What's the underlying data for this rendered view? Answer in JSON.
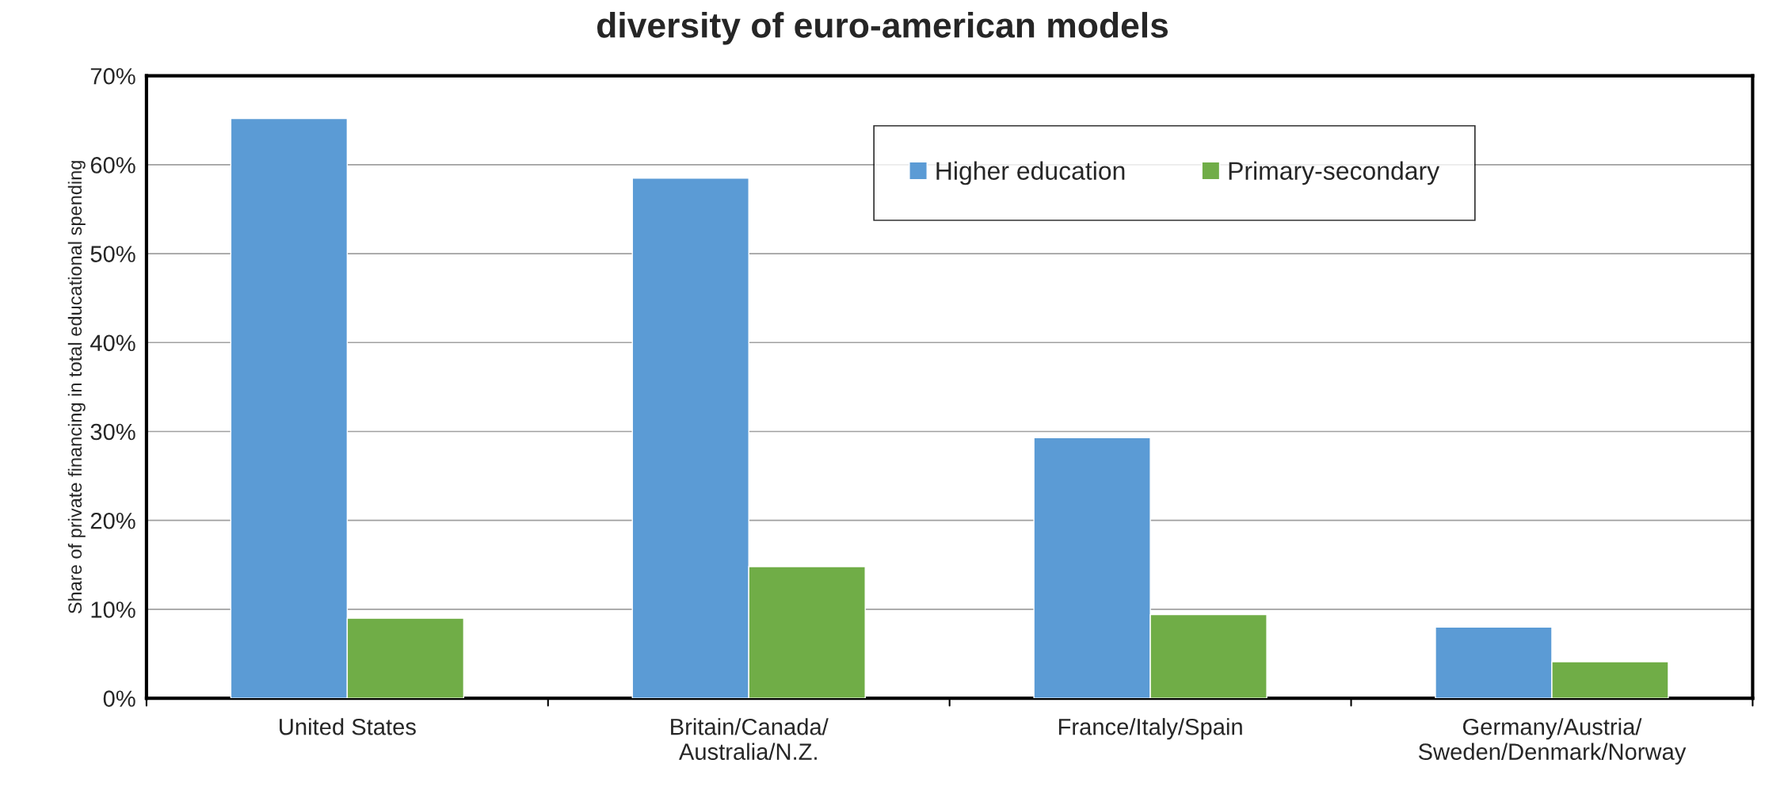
{
  "chart_data": {
    "type": "bar",
    "title": "diversity of euro-american models",
    "ylabel": "Share of private financing in total educational spending",
    "categories": [
      "United States",
      "Britain/Canada/\nAustralia/N.Z.",
      "France/Italy/Spain",
      "Germany/Austria/\nSweden/Denmark/Norway"
    ],
    "series": [
      {
        "name": "Higher education",
        "color": "#5b9bd5",
        "values": [
          65.2,
          58.5,
          29.3,
          8.0
        ]
      },
      {
        "name": "Primary-secondary",
        "color": "#70ad47",
        "values": [
          9.0,
          14.8,
          9.4,
          4.1
        ]
      }
    ],
    "ylim": [
      0,
      70
    ],
    "yticks": [
      {
        "value": 0,
        "label": "0%"
      },
      {
        "value": 10,
        "label": "10%"
      },
      {
        "value": 20,
        "label": "20%"
      },
      {
        "value": 30,
        "label": "30%"
      },
      {
        "value": 40,
        "label": "40%"
      },
      {
        "value": 50,
        "label": "50%"
      },
      {
        "value": 60,
        "label": "60%"
      },
      {
        "value": 70,
        "label": "70%"
      }
    ],
    "grid": "y",
    "legend": "top right"
  }
}
